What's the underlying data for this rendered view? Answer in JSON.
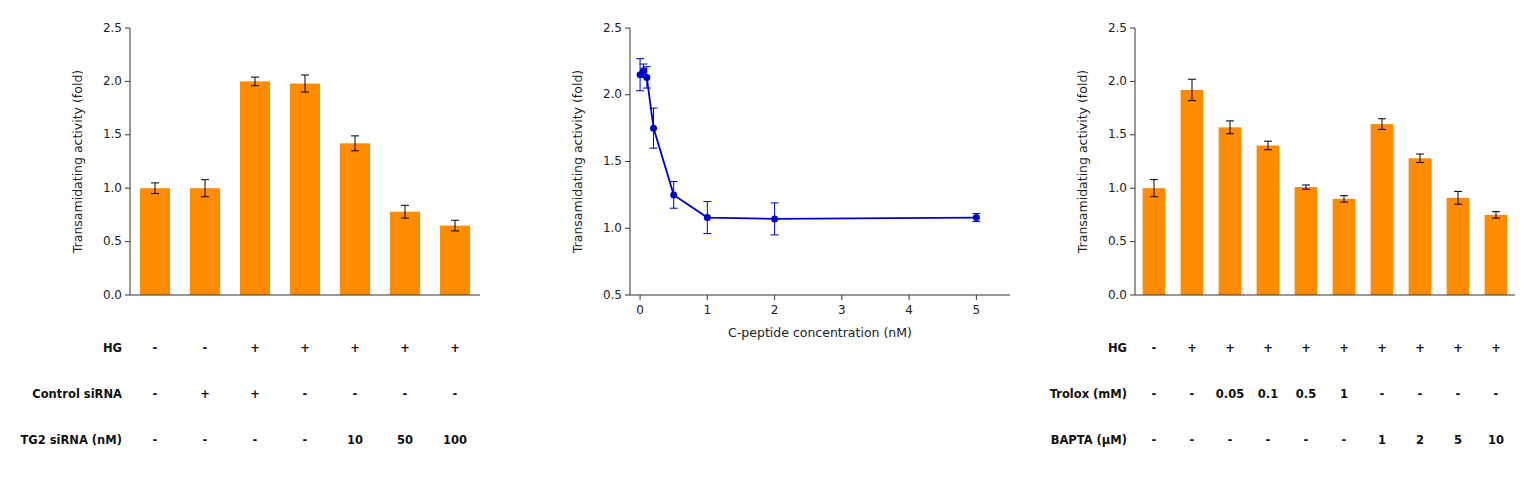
{
  "chart_data": [
    {
      "type": "bar",
      "categories": [
        null,
        null,
        null,
        null,
        null,
        null,
        null
      ],
      "values": [
        1.0,
        1.0,
        2.0,
        1.98,
        1.42,
        0.78,
        0.65
      ],
      "errors": [
        0.05,
        0.08,
        0.04,
        0.08,
        0.07,
        0.06,
        0.05
      ],
      "color": "#FF8C00",
      "y_label": "Transamidating activity (fold)",
      "ylim": [
        0,
        2.5
      ],
      "yticks": [
        {
          "value": 0,
          "label": "0.0"
        },
        0.5,
        {
          "value": 1,
          "label": "1.0"
        },
        1.5,
        {
          "value": 2,
          "label": "2.0"
        },
        2.5
      ],
      "tick_labels": "y",
      "annotations": [
        {
          "label": "HG",
          "values": [
            "-",
            "-",
            "+",
            "+",
            "+",
            "+",
            "+"
          ]
        },
        {
          "label": "Control siRNA",
          "values": [
            "-",
            "+",
            "+",
            "-",
            "-",
            "-",
            "-"
          ]
        },
        {
          "label": "TG2 siRNA (nM)",
          "values": [
            "-",
            "-",
            "-",
            "-",
            "10",
            "50",
            "100"
          ]
        }
      ]
    },
    {
      "type": "line",
      "x": [
        0.0,
        0.05,
        0.1,
        0.2,
        0.5,
        1.0,
        2.0,
        5.0
      ],
      "values": [
        2.15,
        2.18,
        2.13,
        1.75,
        1.25,
        1.08,
        1.07,
        1.08
      ],
      "errors": [
        0.12,
        0.05,
        0.08,
        0.15,
        0.1,
        0.12,
        0.12,
        0.03
      ],
      "color": "#0000CC",
      "marker": "circle",
      "x_label": "C-peptide concentration (nM)",
      "y_label": "Transamidating activity (fold)",
      "xlim": [
        -0.15,
        5.5
      ],
      "ylim": [
        0.5,
        2.5
      ],
      "xticks": [
        0,
        1,
        2,
        3,
        4,
        5
      ],
      "yticks": [
        0.5,
        {
          "value": 1,
          "label": "1.0"
        },
        1.5,
        {
          "value": 2,
          "label": "2.0"
        },
        2.5
      ]
    },
    {
      "type": "bar",
      "categories": [
        null,
        null,
        null,
        null,
        null,
        null,
        null,
        null,
        null,
        null
      ],
      "values": [
        1.0,
        1.92,
        1.57,
        1.4,
        1.01,
        0.9,
        1.6,
        1.28,
        0.91,
        0.75
      ],
      "errors": [
        0.08,
        0.1,
        0.06,
        0.04,
        0.02,
        0.03,
        0.05,
        0.04,
        0.06,
        0.03
      ],
      "color": "#FF8C00",
      "y_label": "Transamidating activity (fold)",
      "ylim": [
        0,
        2.5
      ],
      "yticks": [
        {
          "value": 0,
          "label": "0.0"
        },
        0.5,
        {
          "value": 1,
          "label": "1.0"
        },
        1.5,
        {
          "value": 2,
          "label": "2.0"
        },
        2.5
      ],
      "tick_labels": "y",
      "annotations": [
        {
          "label": "HG",
          "values": [
            "-",
            "+",
            "+",
            "+",
            "+",
            "+",
            "+",
            "+",
            "+",
            "+"
          ]
        },
        {
          "label": "Trolox (mM)",
          "values": [
            "-",
            "-",
            "0.05",
            "0.1",
            "0.5",
            "1",
            "-",
            "-",
            "-",
            "-"
          ]
        },
        {
          "label": "BAPTA (μM)",
          "values": [
            "-",
            "-",
            "-",
            "-",
            "-",
            "-",
            "1",
            "2",
            "5",
            "10"
          ]
        }
      ]
    }
  ]
}
